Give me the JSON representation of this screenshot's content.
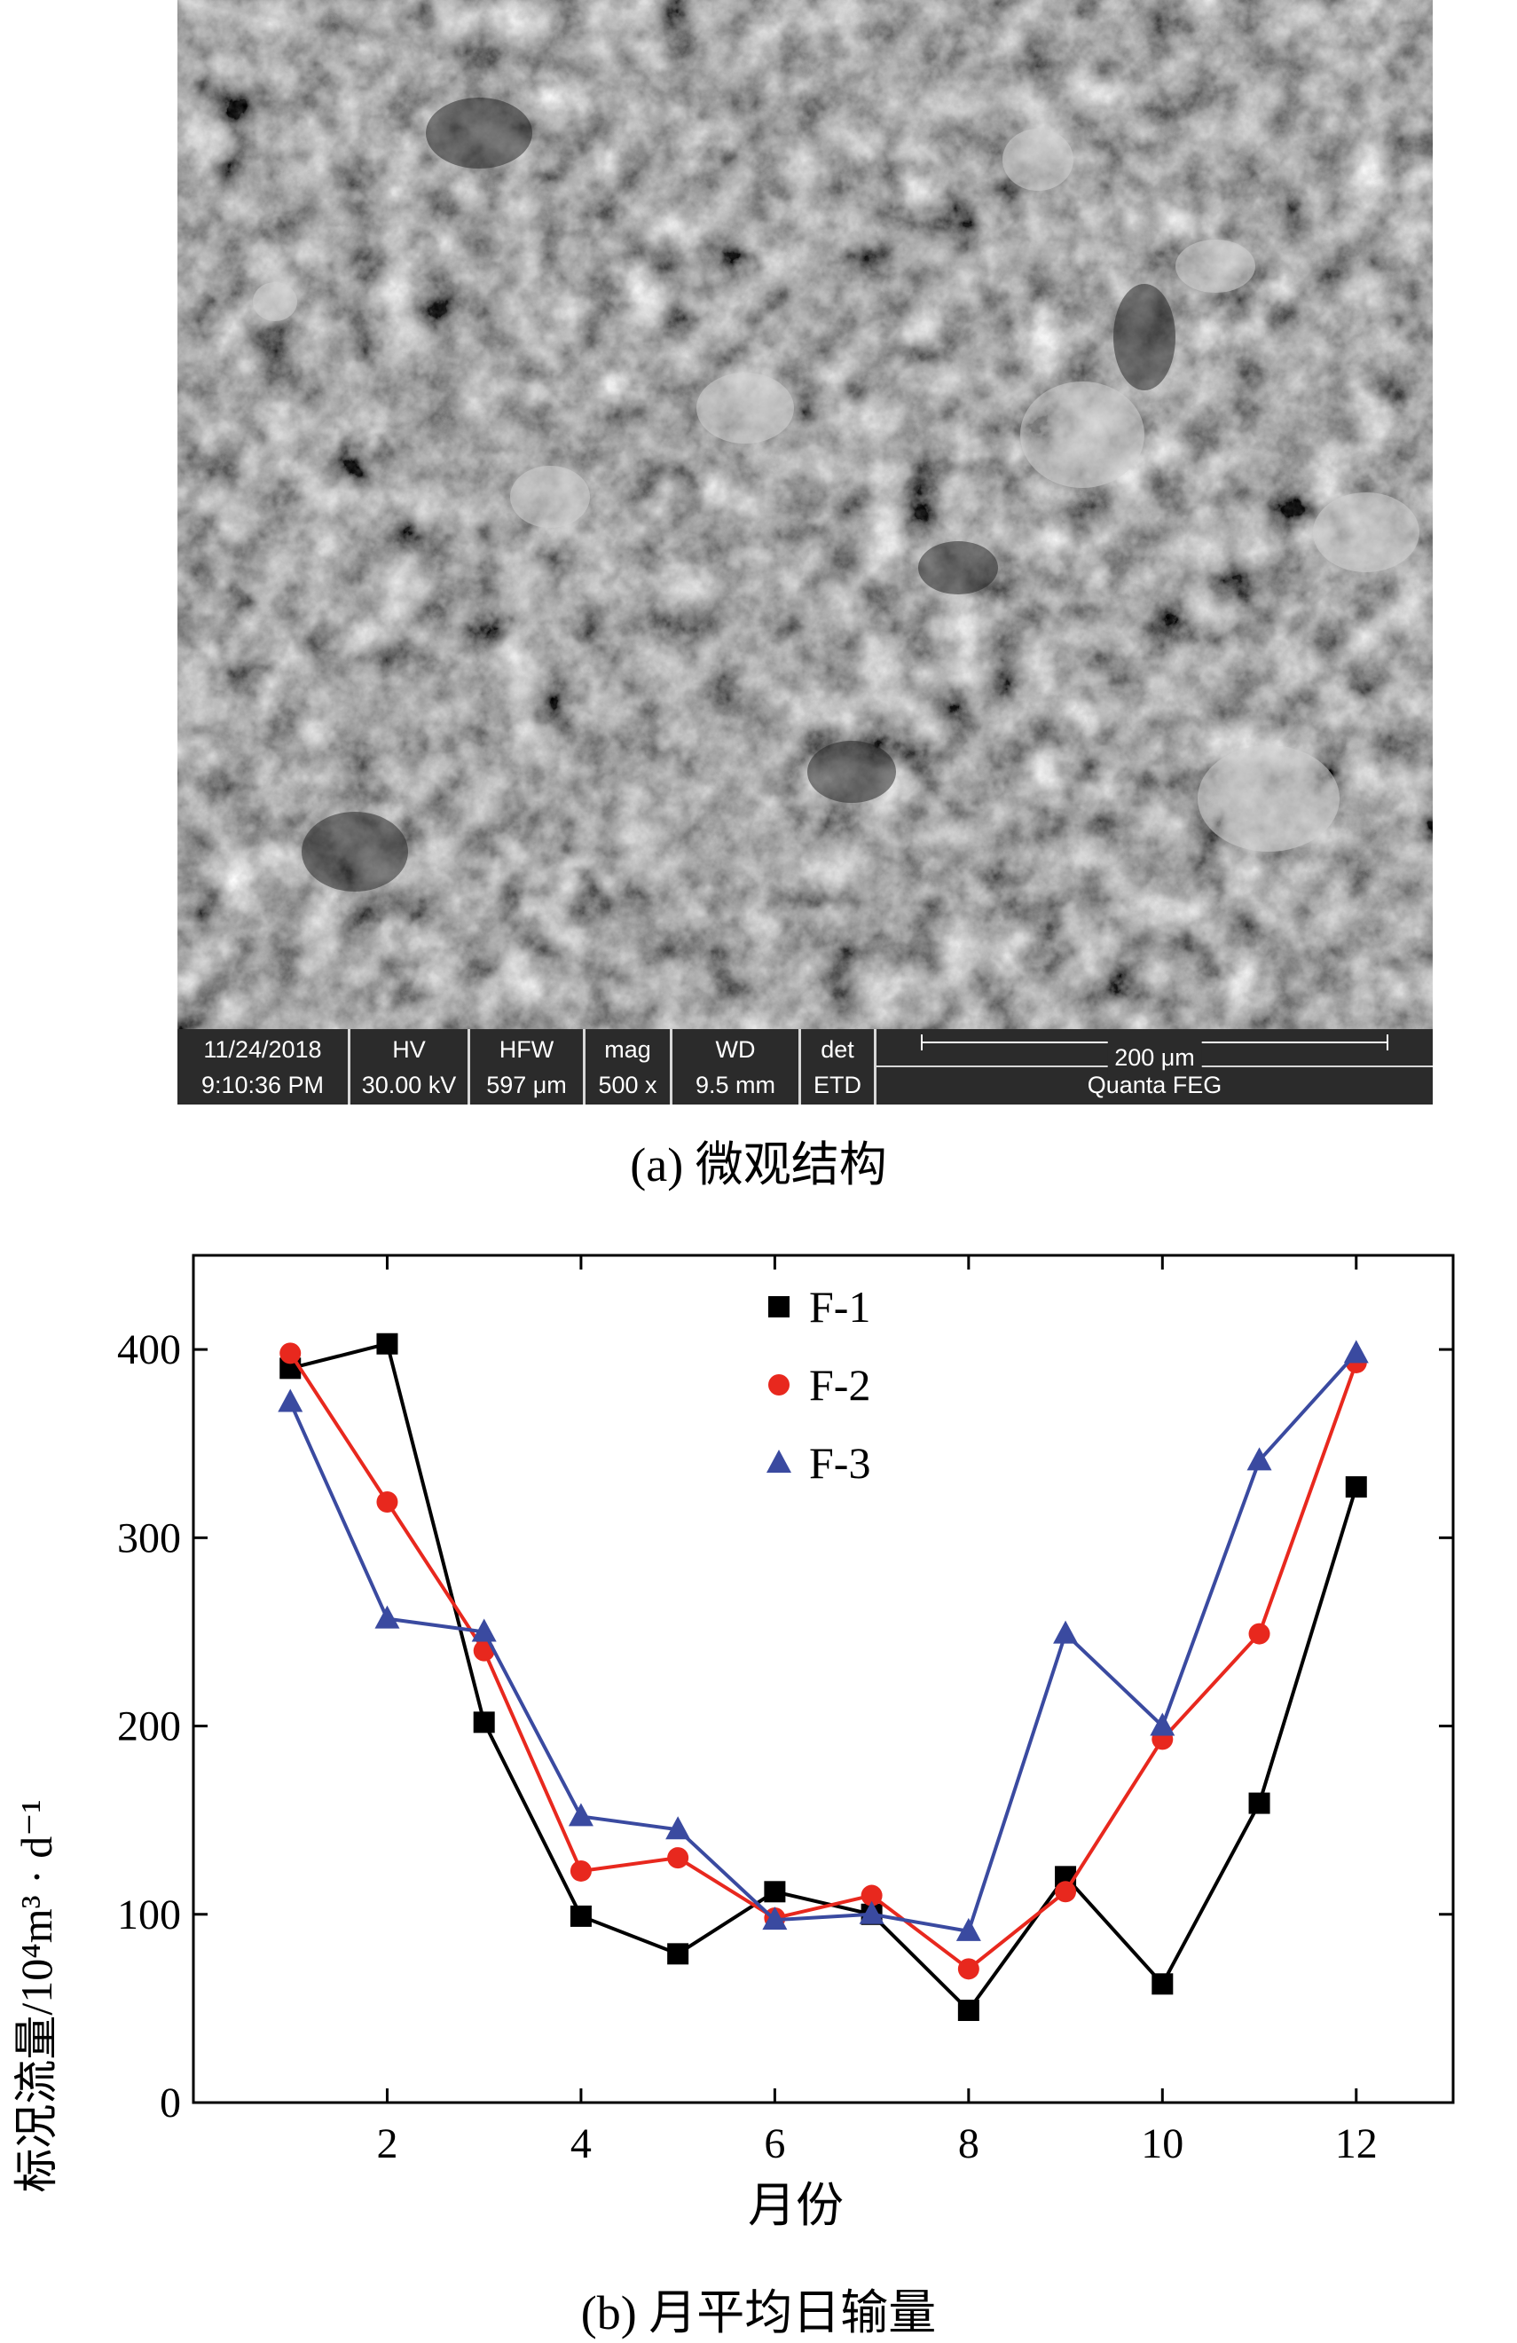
{
  "sem": {
    "date": "11/24/2018",
    "time": "9:10:36 PM",
    "hv_label": "HV",
    "hv_value": "30.00 kV",
    "hfw_label": "HFW",
    "hfw_value": "597 μm",
    "mag_label": "mag",
    "mag_value": "500 x",
    "wd_label": "WD",
    "wd_value": "9.5 mm",
    "det_label": "det",
    "det_value": "ETD",
    "scale_label": "200 μm",
    "instrument": "Quanta FEG"
  },
  "captions": {
    "a": "(a) 微观结构",
    "b": "(b) 月平均日输量"
  },
  "chart_data": {
    "type": "line",
    "xlabel": "月份",
    "ylabel": "标况流量/10⁴m³ · d⁻¹",
    "xlim": [
      0,
      13
    ],
    "ylim": [
      0,
      450
    ],
    "xticks": [
      2,
      4,
      6,
      8,
      10,
      12
    ],
    "yticks": [
      0,
      100,
      200,
      300,
      400
    ],
    "grid": false,
    "legend_position": "top-center",
    "x": [
      1,
      2,
      3,
      4,
      5,
      6,
      7,
      8,
      9,
      10,
      11,
      12
    ],
    "series": [
      {
        "name": "F-1",
        "marker": "square",
        "color": "#000000",
        "values": [
          390,
          403,
          202,
          99,
          79,
          112,
          100,
          49,
          120,
          63,
          159,
          327
        ]
      },
      {
        "name": "F-2",
        "marker": "circle",
        "color": "#e8281e",
        "values": [
          398,
          319,
          240,
          123,
          130,
          98,
          110,
          71,
          112,
          193,
          249,
          393
        ]
      },
      {
        "name": "F-3",
        "marker": "triangle",
        "color": "#3a4aa0",
        "values": [
          372,
          257,
          250,
          152,
          145,
          97,
          100,
          91,
          249,
          200,
          341,
          398
        ]
      }
    ]
  }
}
